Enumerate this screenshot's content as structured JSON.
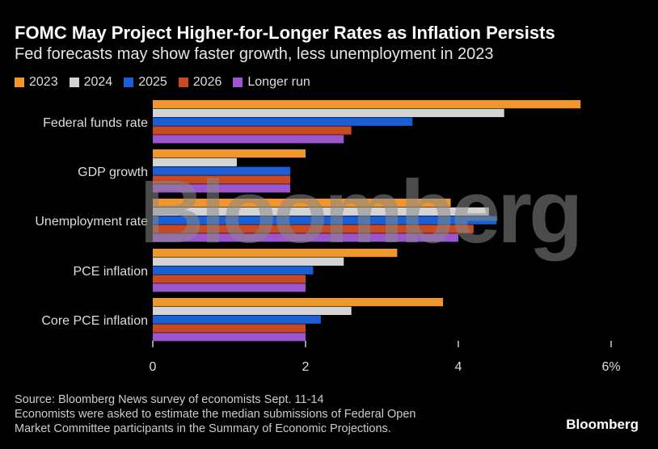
{
  "title": "FOMC May Project Higher-for-Longer Rates as Inflation Persists",
  "subtitle": "Fed forecasts may show faster growth, less unemployment in 2023",
  "source": "Source: Bloomberg News survey of economists Sept. 11-14",
  "note1": "Economists were asked to estimate the median submissions of Federal Open",
  "note2": "Market Committee participants in the Summary of Economic Projections.",
  "logo": "Bloomberg",
  "watermark": "Bloomberg",
  "chart_data": {
    "type": "bar",
    "orientation": "horizontal",
    "categories": [
      "Federal funds rate",
      "GDP growth",
      "Unemployment rate",
      "PCE inflation",
      "Core PCE inflation"
    ],
    "series": [
      {
        "name": "2023",
        "color": "#f0962c",
        "values": [
          5.6,
          2.0,
          3.9,
          3.2,
          3.8
        ]
      },
      {
        "name": "2024",
        "color": "#d4d4d4",
        "values": [
          4.6,
          1.1,
          4.4,
          2.5,
          2.6
        ]
      },
      {
        "name": "2025",
        "color": "#1a5fd6",
        "values": [
          3.4,
          1.8,
          4.5,
          2.1,
          2.2
        ]
      },
      {
        "name": "2026",
        "color": "#c84a22",
        "values": [
          2.6,
          1.8,
          4.2,
          2.0,
          2.0
        ]
      },
      {
        "name": "Longer run",
        "color": "#9a55cf",
        "values": [
          2.5,
          1.8,
          4.0,
          2.0,
          2.0
        ]
      }
    ],
    "xlim": [
      0,
      6
    ],
    "ticks": [
      "0",
      "2",
      "4",
      "6%"
    ],
    "legend": "top-left",
    "grid": false
  }
}
